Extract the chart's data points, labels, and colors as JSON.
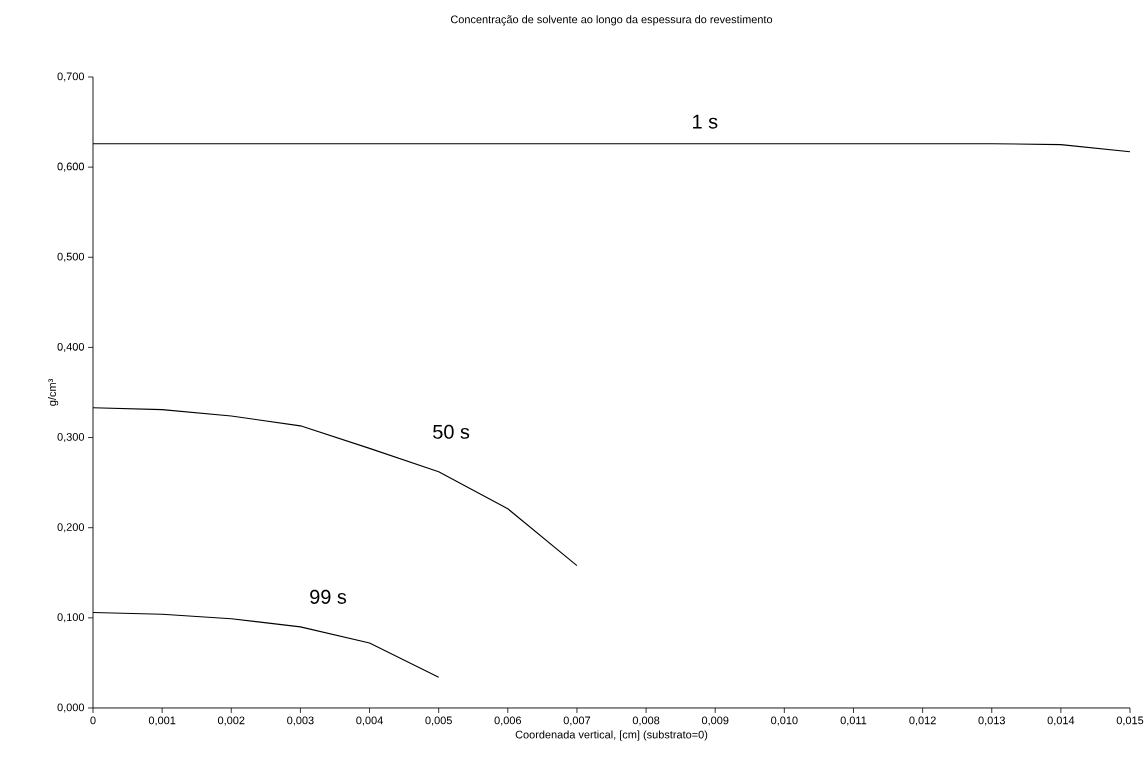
{
  "chart_data": {
    "type": "line",
    "title": "Concentração de solvente ao longo da espessura do revestimento",
    "xlabel": "Coordenada vertical, [cm] (substrato=0)",
    "ylabel": "g/cm³",
    "series": [
      {
        "name": "1 s",
        "color": "#000000",
        "x": [
          0,
          0.001,
          0.002,
          0.003,
          0.004,
          0.005,
          0.006,
          0.007,
          0.008,
          0.009,
          0.01,
          0.011,
          0.012,
          0.013,
          0.014,
          0.015
        ],
        "values": [
          0.626,
          0.626,
          0.626,
          0.626,
          0.626,
          0.626,
          0.626,
          0.626,
          0.626,
          0.626,
          0.626,
          0.626,
          0.626,
          0.626,
          0.625,
          0.617
        ]
      },
      {
        "name": "50 s",
        "color": "#000000",
        "x": [
          0,
          0.001,
          0.002,
          0.003,
          0.004,
          0.005,
          0.006,
          0.007
        ],
        "values": [
          0.333,
          0.331,
          0.324,
          0.313,
          0.288,
          0.262,
          0.221,
          0.158
        ]
      },
      {
        "name": "99 s",
        "color": "#000000",
        "x": [
          0,
          0.001,
          0.002,
          0.003,
          0.004,
          0.005
        ],
        "values": [
          0.106,
          0.104,
          0.099,
          0.09,
          0.072,
          0.034
        ]
      }
    ],
    "xlim": [
      0,
      0.015
    ],
    "ylim": [
      0,
      0.7
    ],
    "xticks": [
      {
        "value": 0,
        "label": "0"
      },
      {
        "value": 0.001,
        "label": "0,001"
      },
      {
        "value": 0.002,
        "label": "0,002"
      },
      {
        "value": 0.003,
        "label": "0,003"
      },
      {
        "value": 0.004,
        "label": "0,004"
      },
      {
        "value": 0.005,
        "label": "0,005"
      },
      {
        "value": 0.006,
        "label": "0,006"
      },
      {
        "value": 0.007,
        "label": "0,007"
      },
      {
        "value": 0.008,
        "label": "0,008"
      },
      {
        "value": 0.009,
        "label": "0,009"
      },
      {
        "value": 0.01,
        "label": "0,010"
      },
      {
        "value": 0.011,
        "label": "0,011"
      },
      {
        "value": 0.012,
        "label": "0,012"
      },
      {
        "value": 0.013,
        "label": "0,013"
      },
      {
        "value": 0.014,
        "label": "0,014"
      },
      {
        "value": 0.015,
        "label": "0,015"
      }
    ],
    "yticks": [
      {
        "value": 0,
        "label": "0,000"
      },
      {
        "value": 0.1,
        "label": "0,100"
      },
      {
        "value": 0.2,
        "label": "0,200"
      },
      {
        "value": 0.3,
        "label": "0,300"
      },
      {
        "value": 0.4,
        "label": "0,400"
      },
      {
        "value": 0.5,
        "label": "0,500"
      },
      {
        "value": 0.6,
        "label": "0,600"
      },
      {
        "value": 0.7,
        "label": "0,700"
      }
    ],
    "grid": false,
    "legend": false,
    "marker": "none",
    "line_style": "solid"
  }
}
